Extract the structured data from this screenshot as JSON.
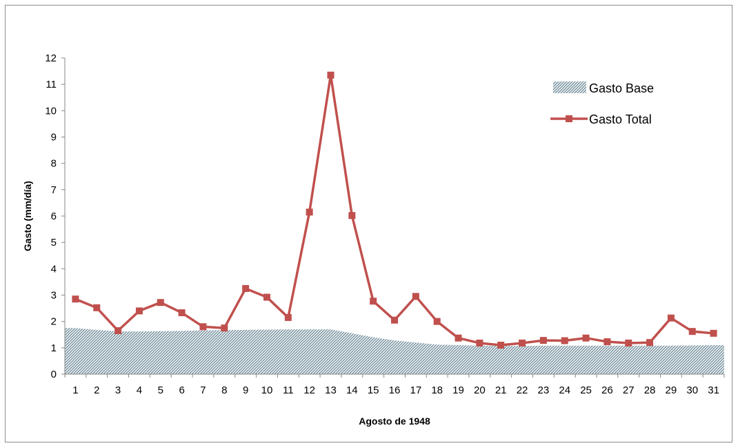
{
  "chart_data": {
    "type": "line",
    "title": "",
    "xlabel": "Agosto de 1948",
    "ylabel": "Gasto (mm/día)",
    "categories": [
      "1",
      "2",
      "3",
      "4",
      "5",
      "6",
      "7",
      "8",
      "9",
      "10",
      "11",
      "12",
      "13",
      "14",
      "15",
      "16",
      "17",
      "18",
      "19",
      "20",
      "21",
      "22",
      "23",
      "24",
      "25",
      "26",
      "27",
      "28",
      "29",
      "30",
      "31"
    ],
    "yticks": [
      "0",
      "1",
      "2",
      "3",
      "4",
      "5",
      "6",
      "7",
      "8",
      "9",
      "10",
      "11",
      "12"
    ],
    "ylim": [
      0,
      12
    ],
    "grid": false,
    "legend_position": "top-right",
    "series": [
      {
        "name": "Gasto Base",
        "kind": "area",
        "pattern": "hatched",
        "color": "#7f9aa8",
        "values": [
          1.75,
          1.68,
          1.62,
          1.62,
          1.63,
          1.64,
          1.66,
          1.67,
          1.68,
          1.69,
          1.7,
          1.7,
          1.7,
          1.55,
          1.4,
          1.28,
          1.2,
          1.12,
          1.1,
          1.08,
          1.07,
          1.07,
          1.08,
          1.08,
          1.08,
          1.08,
          1.08,
          1.08,
          1.08,
          1.09,
          1.1
        ]
      },
      {
        "name": "Gasto Total",
        "kind": "line",
        "marker": "square",
        "color": "#c0504d",
        "values": [
          2.85,
          2.52,
          1.65,
          2.4,
          2.72,
          2.33,
          1.8,
          1.75,
          3.25,
          2.92,
          2.15,
          6.15,
          11.35,
          6.02,
          2.77,
          2.05,
          2.95,
          2.0,
          1.37,
          1.18,
          1.1,
          1.18,
          1.28,
          1.27,
          1.37,
          1.23,
          1.18,
          1.2,
          2.13,
          1.62,
          1.55
        ]
      }
    ]
  }
}
